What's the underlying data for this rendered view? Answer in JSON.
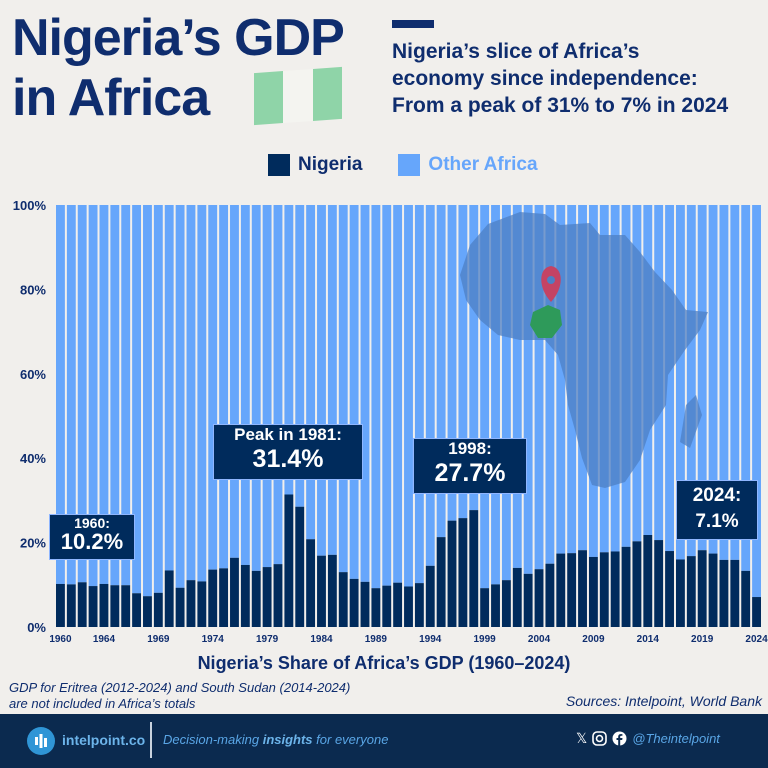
{
  "header": {
    "title_line1": "Nigeria’s GDP",
    "title_line2": "in Africa",
    "subtitle_lines": [
      "Nigeria’s slice of Africa’s",
      "economy since independence:",
      "From a peak of 31% to 7% in 2024"
    ]
  },
  "legend": {
    "nigeria": "Nigeria",
    "other": "Other Africa"
  },
  "colors": {
    "nigeria": "#002b5c",
    "other": "#66a6fb",
    "title": "#0f2d6e",
    "flag_green": "#8fd4a8"
  },
  "annotations": [
    {
      "title": "1960:",
      "value": "10.2%"
    },
    {
      "title": "Peak in 1981:",
      "value": "31.4%"
    },
    {
      "title": "1998:",
      "value": "27.7%"
    },
    {
      "title": "2024:",
      "value": "7.1%"
    }
  ],
  "chart_data": {
    "type": "bar",
    "stacked": true,
    "xlabel": "Nigeria’s Share of Africa’s GDP (1960–2024)",
    "ylim": [
      0,
      100
    ],
    "yticks": [
      "0%",
      "20%",
      "40%",
      "60%",
      "80%",
      "100%"
    ],
    "xticks": [
      "1960",
      "1964",
      "1969",
      "1974",
      "1979",
      "1984",
      "1989",
      "1994",
      "1999",
      "2004",
      "2009",
      "2014",
      "2019",
      "2024"
    ],
    "categories": [
      1960,
      1961,
      1962,
      1963,
      1964,
      1965,
      1966,
      1967,
      1968,
      1969,
      1970,
      1971,
      1972,
      1973,
      1974,
      1975,
      1976,
      1977,
      1978,
      1979,
      1980,
      1981,
      1982,
      1983,
      1984,
      1985,
      1986,
      1987,
      1988,
      1989,
      1990,
      1991,
      1992,
      1993,
      1994,
      1995,
      1996,
      1997,
      1998,
      1999,
      2000,
      2001,
      2002,
      2003,
      2004,
      2005,
      2006,
      2007,
      2008,
      2009,
      2010,
      2011,
      2012,
      2013,
      2014,
      2015,
      2016,
      2017,
      2018,
      2019,
      2020,
      2021,
      2022,
      2023,
      2024
    ],
    "series": [
      {
        "name": "Nigeria",
        "values": [
          10.2,
          10.1,
          10.6,
          9.7,
          10.2,
          9.9,
          9.9,
          8.0,
          7.3,
          8.1,
          13.4,
          9.3,
          11.1,
          10.8,
          13.6,
          13.9,
          16.4,
          14.7,
          13.3,
          14.2,
          14.9,
          31.4,
          28.5,
          20.8,
          16.9,
          17.1,
          13.0,
          11.4,
          10.7,
          9.2,
          9.8,
          10.5,
          9.6,
          10.4,
          14.5,
          21.3,
          25.2,
          25.8,
          27.7,
          9.2,
          10.1,
          11.1,
          14.0,
          12.6,
          13.7,
          15.0,
          17.4,
          17.5,
          18.2,
          16.6,
          17.7,
          17.9,
          19.0,
          20.3,
          21.8,
          20.6,
          18.0,
          16.0,
          16.8,
          18.2,
          17.4,
          15.9,
          15.9,
          13.3,
          7.1
        ]
      },
      {
        "name": "Other Africa",
        "values": "remainder to 100%"
      }
    ]
  },
  "notes": {
    "exclusion_line1": "GDP for Eritrea (2012-2024) and South Sudan (2014-2024)",
    "exclusion_line2": "are not included in Africa’s totals",
    "sources": "Sources: Intelpoint, World Bank"
  },
  "footer": {
    "brand": "intelpoint.co",
    "tag_pre": "Decision-making ",
    "tag_bold": "insights",
    "tag_post": " for everyone",
    "x_icon": "𝕏",
    "handle": "@Theintelpoint"
  }
}
